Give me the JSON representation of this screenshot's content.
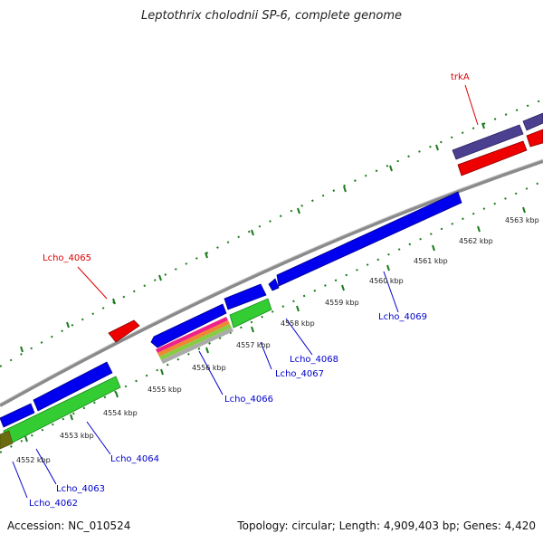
{
  "title": "Leptothrix cholodnii SP-6, complete genome",
  "footer": {
    "accession": "Accession: NC_010524",
    "summary": "Topology: circular; Length: 4,909,403 bp; Genes: 4,420"
  },
  "colors": {
    "forward_cds": "#0000ee",
    "reverse_cds": "#33cc33",
    "trna_feature": "#ee0000",
    "operon_feature": "#4b3f8f",
    "backbone": "#888888",
    "tick": "#1a7a1a",
    "locus_label": "#0000cc",
    "named_label": "#dd0000"
  },
  "scale": {
    "unit": "kbp",
    "ticks": [
      {
        "label": "4552 kbp"
      },
      {
        "label": "4553 kbp"
      },
      {
        "label": "4554 kbp"
      },
      {
        "label": "4555 kbp"
      },
      {
        "label": "4556 kbp"
      },
      {
        "label": "4557 kbp"
      },
      {
        "label": "4558 kbp"
      },
      {
        "label": "4559 kbp"
      },
      {
        "label": "4560 kbp"
      },
      {
        "label": "4561 kbp"
      },
      {
        "label": "4562 kbp"
      },
      {
        "label": "4563 kbp"
      }
    ]
  },
  "labels": [
    {
      "text": "Lcho_4062",
      "kind": "locus"
    },
    {
      "text": "Lcho_4063",
      "kind": "locus"
    },
    {
      "text": "Lcho_4064",
      "kind": "locus"
    },
    {
      "text": "Lcho_4065",
      "kind": "named"
    },
    {
      "text": "Lcho_4066",
      "kind": "locus"
    },
    {
      "text": "Lcho_4067",
      "kind": "locus"
    },
    {
      "text": "Lcho_4068",
      "kind": "locus"
    },
    {
      "text": "Lcho_4069",
      "kind": "locus"
    },
    {
      "text": "trkA",
      "kind": "named"
    }
  ]
}
